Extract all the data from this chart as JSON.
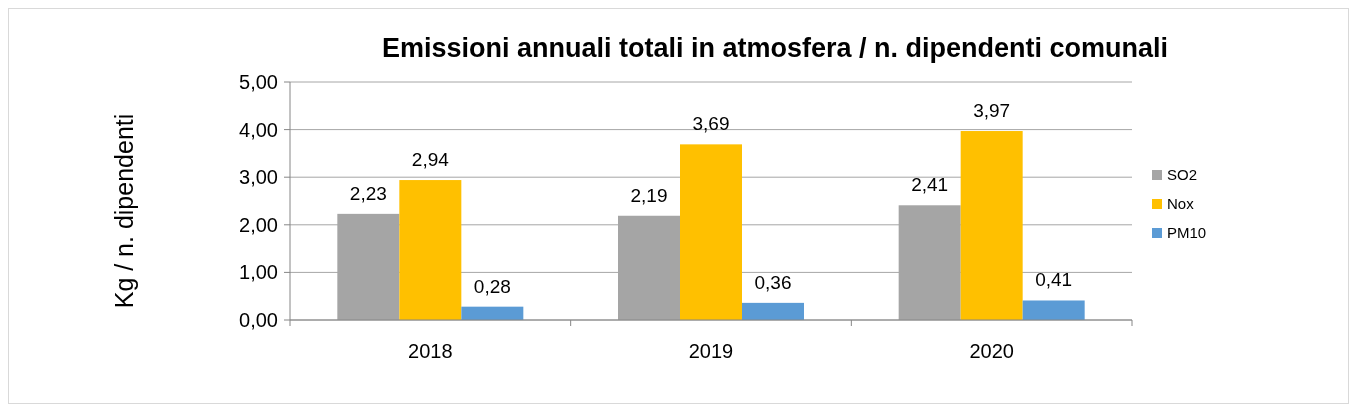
{
  "chart_data": {
    "type": "bar",
    "title": "Emissioni annuali totali in atmosfera / n. dipendenti comunali",
    "ylabel": "Kg / n. dipendenti",
    "categories": [
      "2018",
      "2019",
      "2020"
    ],
    "series": [
      {
        "name": "SO2",
        "color": "#a5a5a5",
        "values": [
          2.23,
          2.19,
          2.41
        ],
        "value_labels": [
          "2,23",
          "2,19",
          "2,41"
        ]
      },
      {
        "name": "Nox",
        "color": "#ffc000",
        "values": [
          2.94,
          3.69,
          3.97
        ],
        "value_labels": [
          "2,94",
          "3,69",
          "3,97"
        ]
      },
      {
        "name": "PM10",
        "color": "#5b9bd5",
        "values": [
          0.28,
          0.36,
          0.41
        ],
        "value_labels": [
          "0,28",
          "0,36",
          "0,41"
        ]
      }
    ],
    "ylim": [
      0,
      5
    ],
    "yticks": [
      {
        "value": 0,
        "label": "0,00"
      },
      {
        "value": 1,
        "label": "1,00"
      },
      {
        "value": 2,
        "label": "2,00"
      },
      {
        "value": 3,
        "label": "3,00"
      },
      {
        "value": 4,
        "label": "4,00"
      },
      {
        "value": 5,
        "label": "5,00"
      }
    ],
    "grid": "y",
    "legend": "right"
  }
}
